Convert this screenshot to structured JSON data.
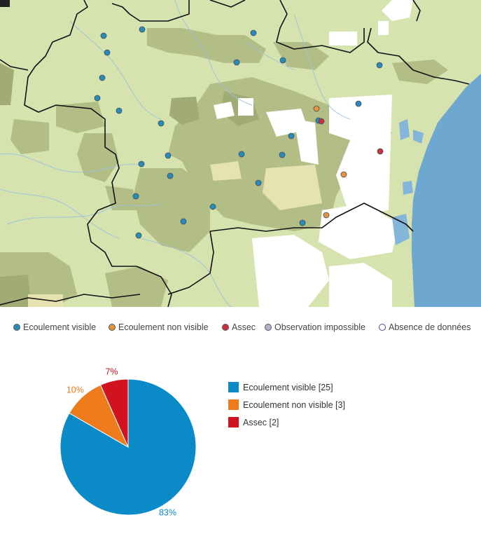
{
  "map": {
    "colors": {
      "land": "#d7e3ae",
      "forest": "#b3bd86",
      "dense_forest": "#a1ab76",
      "nodata": "#ffffff",
      "sand": "#e6e2b2",
      "sea": "#6ea8d0",
      "lake": "#84b6d9",
      "river": "#9dc6d9",
      "border": "#111111"
    },
    "stations": [
      {
        "status": "visible"
      },
      {
        "status": "visible"
      },
      {
        "status": "visible"
      },
      {
        "status": "visible"
      },
      {
        "status": "visible"
      },
      {
        "status": "visible"
      },
      {
        "status": "visible"
      },
      {
        "status": "visible"
      },
      {
        "status": "visible"
      },
      {
        "status": "visible"
      },
      {
        "status": "visible"
      },
      {
        "status": "visible"
      },
      {
        "status": "visible"
      },
      {
        "status": "visible"
      },
      {
        "status": "visible"
      },
      {
        "status": "visible"
      },
      {
        "status": "visible"
      },
      {
        "status": "visible"
      },
      {
        "status": "visible"
      },
      {
        "status": "visible"
      },
      {
        "status": "visible"
      },
      {
        "status": "visible"
      },
      {
        "status": "visible"
      },
      {
        "status": "visible"
      },
      {
        "status": "visible"
      },
      {
        "status": "non_visible"
      },
      {
        "status": "non_visible"
      },
      {
        "status": "non_visible"
      },
      {
        "status": "assec"
      },
      {
        "status": "assec"
      }
    ]
  },
  "map_legend": [
    {
      "label": "Ecoulement visible",
      "color": "#2a8ab8",
      "hollow": false
    },
    {
      "label": "Ecoulement non visible",
      "color": "#e8913e",
      "hollow": false
    },
    {
      "label": "Assec",
      "color": "#c8303e",
      "hollow": false
    },
    {
      "label": "Observation impossible",
      "color": "#b3b3cf",
      "hollow": false
    },
    {
      "label": "Absence de données",
      "color": "#4b4b9a",
      "hollow": true
    }
  ],
  "chart_data": {
    "type": "pie",
    "title": "",
    "slices": [
      {
        "label": "Ecoulement visible",
        "value": 25,
        "percent": "83%",
        "color": "#0a8bc8"
      },
      {
        "label": "Ecoulement non visible",
        "value": 3,
        "percent": "10%",
        "color": "#ee7c1c"
      },
      {
        "label": "Assec",
        "value": 2,
        "percent": "7%",
        "color": "#d0131e"
      }
    ],
    "legend": [
      {
        "label": "Ecoulement visible [25]",
        "color": "#0a8bc8"
      },
      {
        "label": "Ecoulement non visible [3]",
        "color": "#ee7c1c"
      },
      {
        "label": "Assec [2]",
        "color": "#d0131e"
      }
    ],
    "legend_position": "right"
  }
}
